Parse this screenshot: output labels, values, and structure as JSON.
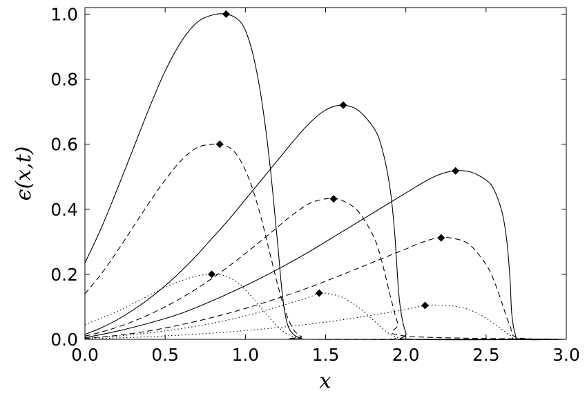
{
  "chart_data": {
    "type": "line",
    "title": "",
    "xlabel": "x",
    "ylabel": "ϵ(x,t)",
    "xlim": [
      0.0,
      3.0
    ],
    "ylim": [
      0.0,
      1.02
    ],
    "xticks": [
      "0.0",
      "0.5",
      "1.0",
      "1.5",
      "2.0",
      "2.5",
      "3.0"
    ],
    "yticks": [
      "0.0",
      "0.2",
      "0.4",
      "0.6",
      "0.8",
      "1.0"
    ],
    "xtick_values": [
      0.0,
      0.5,
      1.0,
      1.5,
      2.0,
      2.5,
      3.0
    ],
    "ytick_values": [
      0.0,
      0.2,
      0.4,
      0.6,
      0.8,
      1.0
    ],
    "grid": false,
    "series": [
      {
        "style": "solid",
        "x": [
          0.0,
          0.1,
          0.2,
          0.3,
          0.4,
          0.5,
          0.6,
          0.7,
          0.8,
          0.88,
          0.95,
          1.0,
          1.05,
          1.1,
          1.15,
          1.2,
          1.23,
          1.26,
          1.3,
          1.35,
          1.4,
          3.0
        ],
        "y": [
          0.235,
          0.34,
          0.46,
          0.585,
          0.71,
          0.825,
          0.915,
          0.975,
          0.998,
          1.0,
          0.985,
          0.95,
          0.87,
          0.74,
          0.55,
          0.3,
          0.14,
          0.05,
          0.015,
          0.003,
          0.0,
          0.0
        ],
        "peak": [
          0.88,
          1.0
        ]
      },
      {
        "style": "dashed",
        "x": [
          0.0,
          0.1,
          0.2,
          0.3,
          0.4,
          0.5,
          0.6,
          0.7,
          0.8,
          0.84,
          0.9,
          0.95,
          1.0,
          1.05,
          1.1,
          1.15,
          1.2,
          1.25,
          1.3,
          1.35,
          1.4,
          3.0
        ],
        "y": [
          0.14,
          0.2,
          0.27,
          0.345,
          0.42,
          0.49,
          0.55,
          0.59,
          0.6,
          0.6,
          0.59,
          0.565,
          0.52,
          0.455,
          0.37,
          0.27,
          0.17,
          0.085,
          0.03,
          0.008,
          0.0,
          0.0
        ],
        "peak": [
          0.84,
          0.6
        ]
      },
      {
        "style": "dotted",
        "x": [
          0.0,
          0.1,
          0.2,
          0.3,
          0.4,
          0.5,
          0.6,
          0.7,
          0.79,
          0.85,
          0.9,
          0.95,
          1.0,
          1.05,
          1.1,
          1.15,
          1.2,
          1.25,
          1.3,
          1.35,
          1.4,
          3.0
        ],
        "y": [
          0.045,
          0.065,
          0.085,
          0.11,
          0.135,
          0.16,
          0.18,
          0.195,
          0.2,
          0.198,
          0.19,
          0.175,
          0.152,
          0.125,
          0.095,
          0.066,
          0.04,
          0.02,
          0.008,
          0.002,
          0.0,
          0.0
        ],
        "peak": [
          0.79,
          0.2
        ]
      },
      {
        "style": "solid",
        "x": [
          0.0,
          0.1,
          0.2,
          0.3,
          0.4,
          0.5,
          0.6,
          0.7,
          0.8,
          0.9,
          1.0,
          1.1,
          1.2,
          1.3,
          1.4,
          1.5,
          1.6,
          1.7,
          1.8,
          1.85,
          1.9,
          1.93,
          1.96,
          2.0,
          2.05,
          3.0
        ],
        "y": [
          0.015,
          0.035,
          0.06,
          0.09,
          0.125,
          0.165,
          0.21,
          0.26,
          0.315,
          0.37,
          0.43,
          0.49,
          0.55,
          0.61,
          0.665,
          0.705,
          0.72,
          0.705,
          0.65,
          0.59,
          0.47,
          0.33,
          0.12,
          0.02,
          0.0,
          0.0
        ],
        "peak": [
          1.61,
          0.72
        ]
      },
      {
        "style": "dashed",
        "x": [
          0.0,
          0.1,
          0.2,
          0.3,
          0.4,
          0.5,
          0.6,
          0.7,
          0.8,
          0.9,
          1.0,
          1.1,
          1.2,
          1.3,
          1.4,
          1.5,
          1.55,
          1.6,
          1.7,
          1.8,
          1.85,
          1.9,
          1.95,
          2.0,
          3.0
        ],
        "y": [
          0.01,
          0.022,
          0.037,
          0.055,
          0.076,
          0.1,
          0.127,
          0.157,
          0.19,
          0.226,
          0.264,
          0.304,
          0.345,
          0.385,
          0.418,
          0.432,
          0.432,
          0.428,
          0.395,
          0.315,
          0.24,
          0.14,
          0.05,
          0.01,
          0.0
        ],
        "peak": [
          1.55,
          0.432
        ]
      },
      {
        "style": "dotted",
        "x": [
          0.0,
          0.2,
          0.4,
          0.6,
          0.8,
          1.0,
          1.2,
          1.3,
          1.4,
          1.46,
          1.5,
          1.6,
          1.7,
          1.8,
          1.85,
          1.9,
          1.95,
          2.0,
          3.0
        ],
        "y": [
          0.003,
          0.01,
          0.02,
          0.033,
          0.05,
          0.072,
          0.1,
          0.115,
          0.13,
          0.142,
          0.142,
          0.13,
          0.1,
          0.058,
          0.035,
          0.016,
          0.005,
          0.0,
          0.0
        ],
        "peak": [
          1.46,
          0.142
        ]
      },
      {
        "style": "solid",
        "x": [
          0.0,
          0.2,
          0.4,
          0.6,
          0.8,
          1.0,
          1.2,
          1.4,
          1.6,
          1.8,
          2.0,
          2.1,
          2.2,
          2.3,
          2.4,
          2.5,
          2.55,
          2.6,
          2.63,
          2.65,
          2.66,
          2.68,
          2.72,
          3.0
        ],
        "y": [
          0.005,
          0.025,
          0.05,
          0.08,
          0.12,
          0.165,
          0.215,
          0.27,
          0.33,
          0.39,
          0.45,
          0.48,
          0.505,
          0.518,
          0.515,
          0.49,
          0.46,
          0.39,
          0.3,
          0.18,
          0.08,
          0.02,
          0.0,
          0.0
        ],
        "peak": [
          2.31,
          0.518
        ]
      },
      {
        "style": "dashed",
        "x": [
          0.0,
          0.2,
          0.4,
          0.6,
          0.8,
          1.0,
          1.2,
          1.4,
          1.6,
          1.8,
          2.0,
          2.1,
          2.2,
          2.3,
          2.4,
          2.5,
          2.55,
          2.6,
          2.65,
          2.7,
          3.0
        ],
        "y": [
          0.003,
          0.012,
          0.026,
          0.045,
          0.068,
          0.095,
          0.126,
          0.16,
          0.198,
          0.238,
          0.278,
          0.298,
          0.312,
          0.31,
          0.29,
          0.23,
          0.18,
          0.11,
          0.04,
          0.005,
          0.0
        ],
        "peak": [
          2.22,
          0.312
        ]
      },
      {
        "style": "dotted",
        "x": [
          0.0,
          0.3,
          0.6,
          0.9,
          1.2,
          1.5,
          1.8,
          2.0,
          2.12,
          2.2,
          2.3,
          2.4,
          2.5,
          2.6,
          2.65,
          2.7,
          3.0
        ],
        "y": [
          0.001,
          0.006,
          0.013,
          0.023,
          0.036,
          0.053,
          0.075,
          0.092,
          0.104,
          0.105,
          0.102,
          0.09,
          0.065,
          0.03,
          0.012,
          0.002,
          0.0
        ],
        "peak": [
          2.12,
          0.104
        ]
      }
    ]
  }
}
